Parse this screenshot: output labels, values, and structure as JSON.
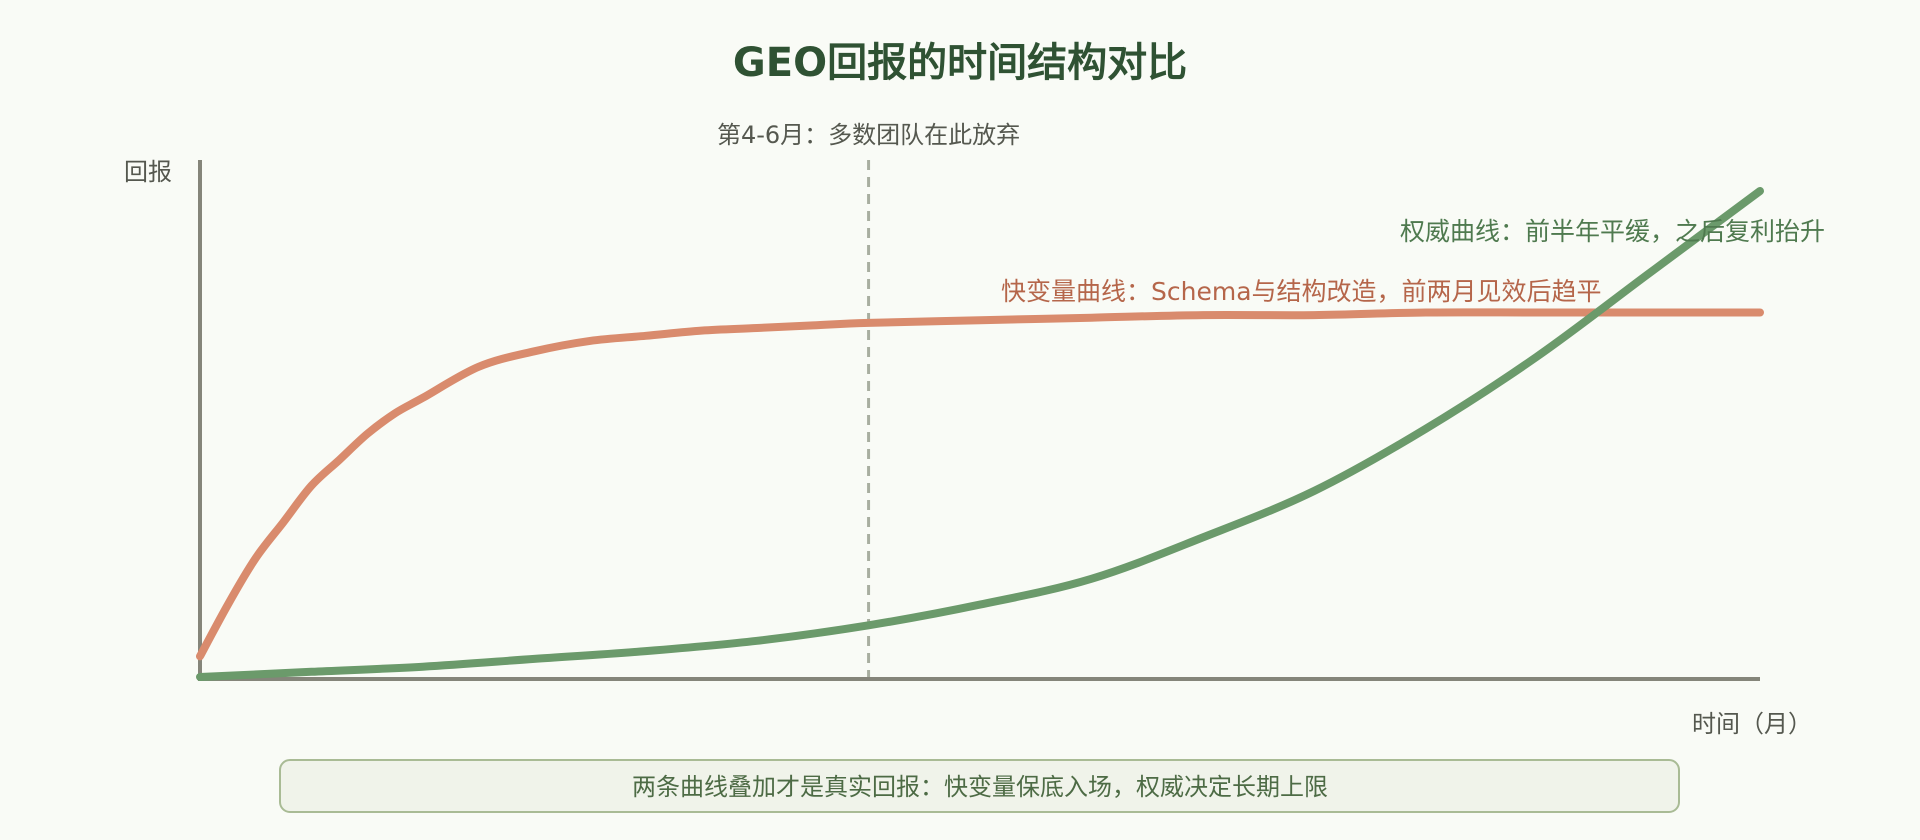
{
  "chart_data": {
    "type": "line",
    "title": "GEO回报的时间结构对比",
    "ylabel": "回报",
    "xlabel": "时间（月）",
    "xlim": [
      0,
      14
    ],
    "ylim": [
      0,
      1
    ],
    "grid": false,
    "series": [
      {
        "name": "快变量曲线：Schema与结构改造，前两月见效后趋平",
        "color": "#d98b6d",
        "x": [
          0,
          0.25,
          0.5,
          0.75,
          1,
          1.25,
          1.5,
          1.75,
          2,
          2.5,
          3,
          3.5,
          4,
          4.5,
          5,
          5.5,
          6,
          7,
          8,
          9,
          10,
          11,
          12,
          13,
          14
        ],
        "y": [
          0.04,
          0.14,
          0.23,
          0.3,
          0.37,
          0.42,
          0.47,
          0.51,
          0.54,
          0.6,
          0.63,
          0.65,
          0.66,
          0.67,
          0.675,
          0.68,
          0.685,
          0.69,
          0.695,
          0.7,
          0.7,
          0.705,
          0.705,
          0.705,
          0.705
        ]
      },
      {
        "name": "权威曲线：前半年平缓，之后复利抬升",
        "color": "#6b9a6b",
        "x": [
          0,
          1,
          2,
          3,
          4,
          5,
          6,
          7,
          8,
          9,
          10,
          11,
          12,
          13,
          14
        ],
        "y": [
          0.0,
          0.01,
          0.02,
          0.035,
          0.05,
          0.07,
          0.1,
          0.14,
          0.19,
          0.27,
          0.36,
          0.48,
          0.62,
          0.78,
          0.94
        ]
      }
    ],
    "annotations": [
      {
        "type": "vline",
        "x": 6,
        "label": "第4-6月：多数团队在此放弃",
        "color": "#a8aea0"
      }
    ]
  },
  "footer": {
    "text": "两条曲线叠加才是真实回报：快变量保底入场，权威决定长期上限"
  }
}
